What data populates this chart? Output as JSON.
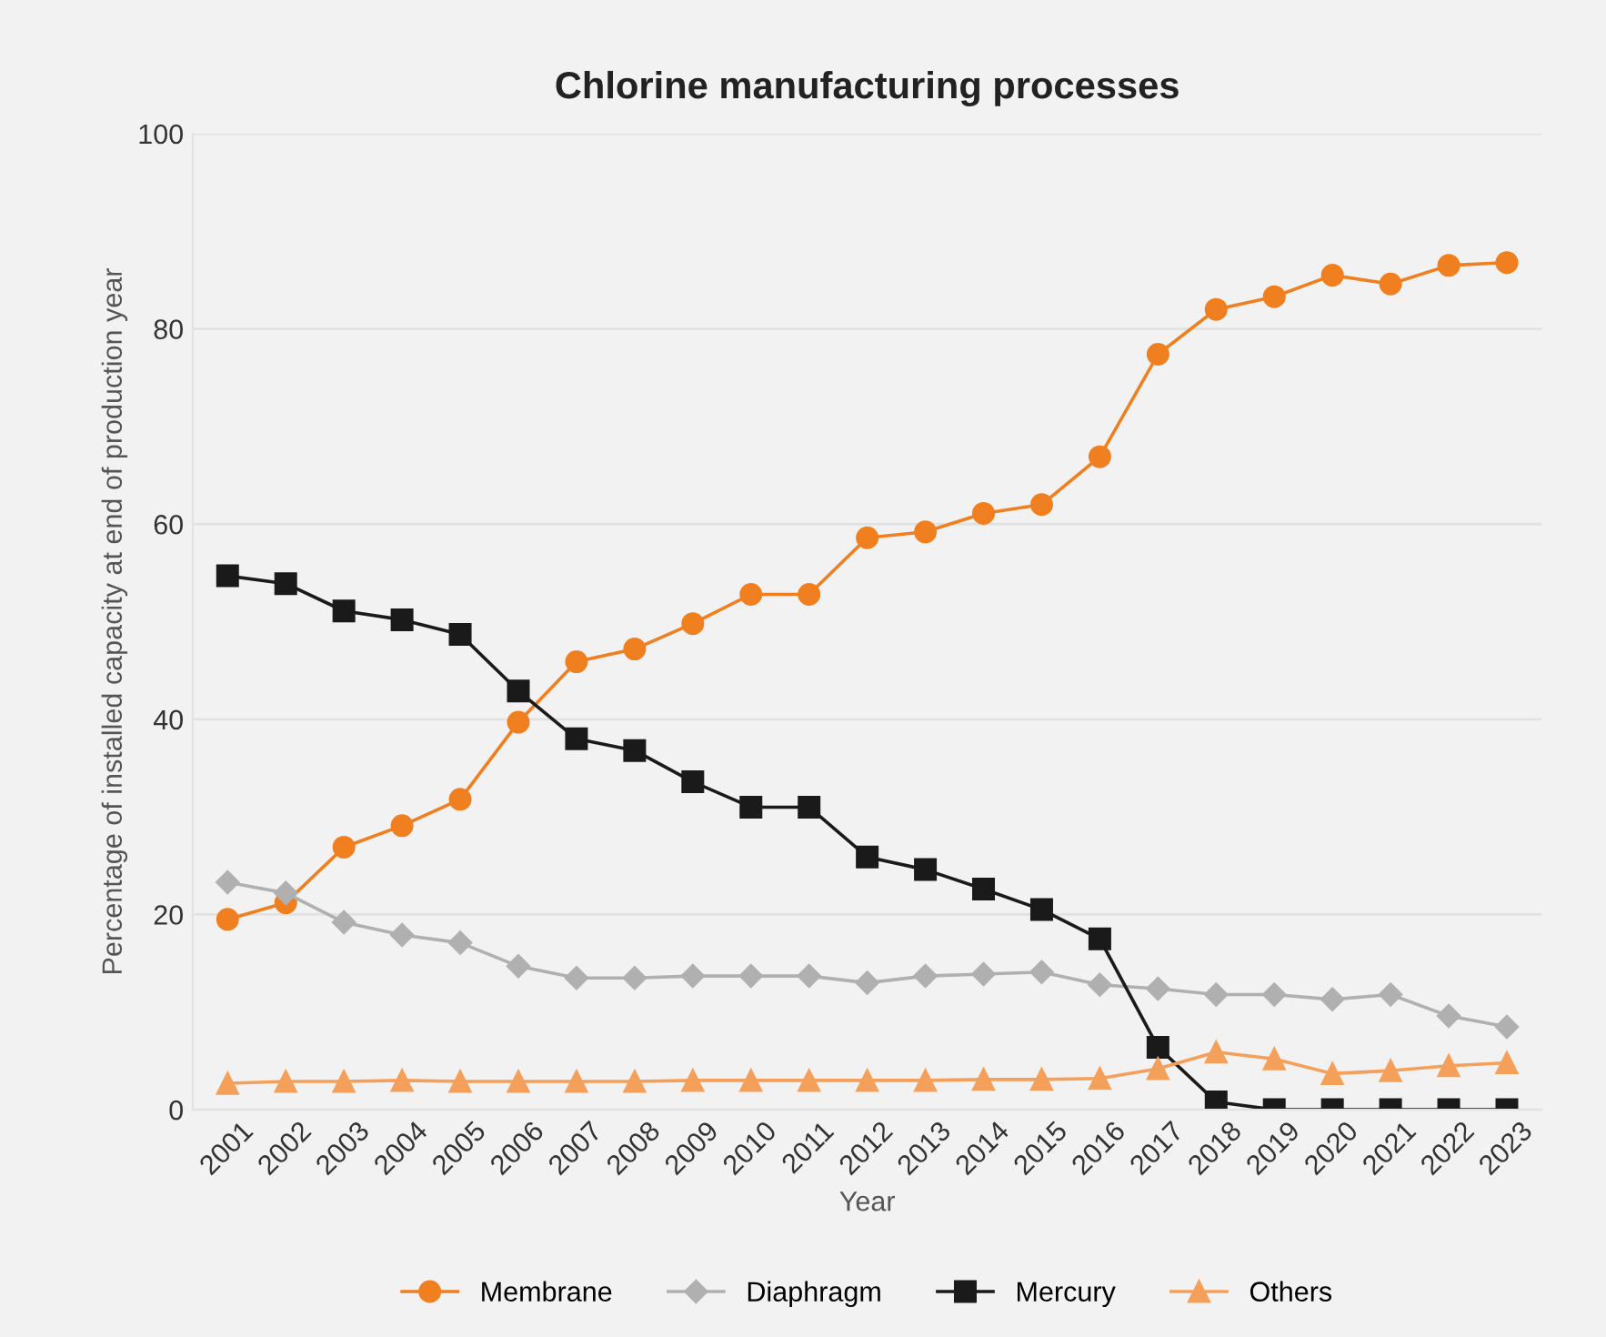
{
  "chart_data": {
    "type": "line",
    "title": "Chlorine manufacturing processes",
    "xlabel": "Year",
    "ylabel": "Percentage of installed capacity at end of production year",
    "categories": [
      "2001",
      "2002",
      "2003",
      "2004",
      "2005",
      "2006",
      "2007",
      "2008",
      "2009",
      "2010",
      "2011",
      "2012",
      "2013",
      "2014",
      "2015",
      "2016",
      "2017",
      "2018",
      "2019",
      "2020",
      "2021",
      "2022",
      "2023"
    ],
    "series": [
      {
        "name": "Membrane",
        "color": "#f07f20",
        "marker": "circle",
        "values": [
          19.5,
          21.2,
          26.9,
          29.1,
          31.8,
          39.7,
          45.9,
          47.2,
          49.8,
          52.8,
          52.8,
          58.6,
          59.2,
          61.1,
          62.0,
          66.9,
          77.4,
          82.0,
          83.3,
          85.5,
          84.6,
          86.5,
          86.8
        ]
      },
      {
        "name": "Diaphragm",
        "color": "#b0b0b0",
        "marker": "diamond",
        "values": [
          23.3,
          22.2,
          19.2,
          17.9,
          17.1,
          14.7,
          13.5,
          13.5,
          13.7,
          13.7,
          13.7,
          13.0,
          13.7,
          13.9,
          14.1,
          12.8,
          12.4,
          11.8,
          11.8,
          11.3,
          11.8,
          9.6,
          8.5
        ]
      },
      {
        "name": "Mercury",
        "color": "#1a1a1a",
        "marker": "square",
        "values": [
          54.7,
          53.9,
          51.1,
          50.2,
          48.7,
          42.9,
          38.0,
          36.8,
          33.6,
          31.0,
          31.0,
          25.9,
          24.6,
          22.6,
          20.5,
          17.5,
          6.4,
          0.8,
          0,
          0,
          0,
          0,
          0
        ]
      },
      {
        "name": "Others",
        "color": "#f5a05a",
        "marker": "triangle",
        "values": [
          2.7,
          2.9,
          2.9,
          3.0,
          2.9,
          2.9,
          2.9,
          2.9,
          3.0,
          3.0,
          3.0,
          3.0,
          3.0,
          3.1,
          3.1,
          3.2,
          4.2,
          5.9,
          5.2,
          3.7,
          4.0,
          4.5,
          4.8
        ]
      }
    ],
    "ylim": [
      0,
      100
    ],
    "yticks": [
      0,
      20,
      40,
      60,
      80,
      100
    ],
    "grid": "y",
    "legend": "bottom",
    "line_style": "solid"
  }
}
